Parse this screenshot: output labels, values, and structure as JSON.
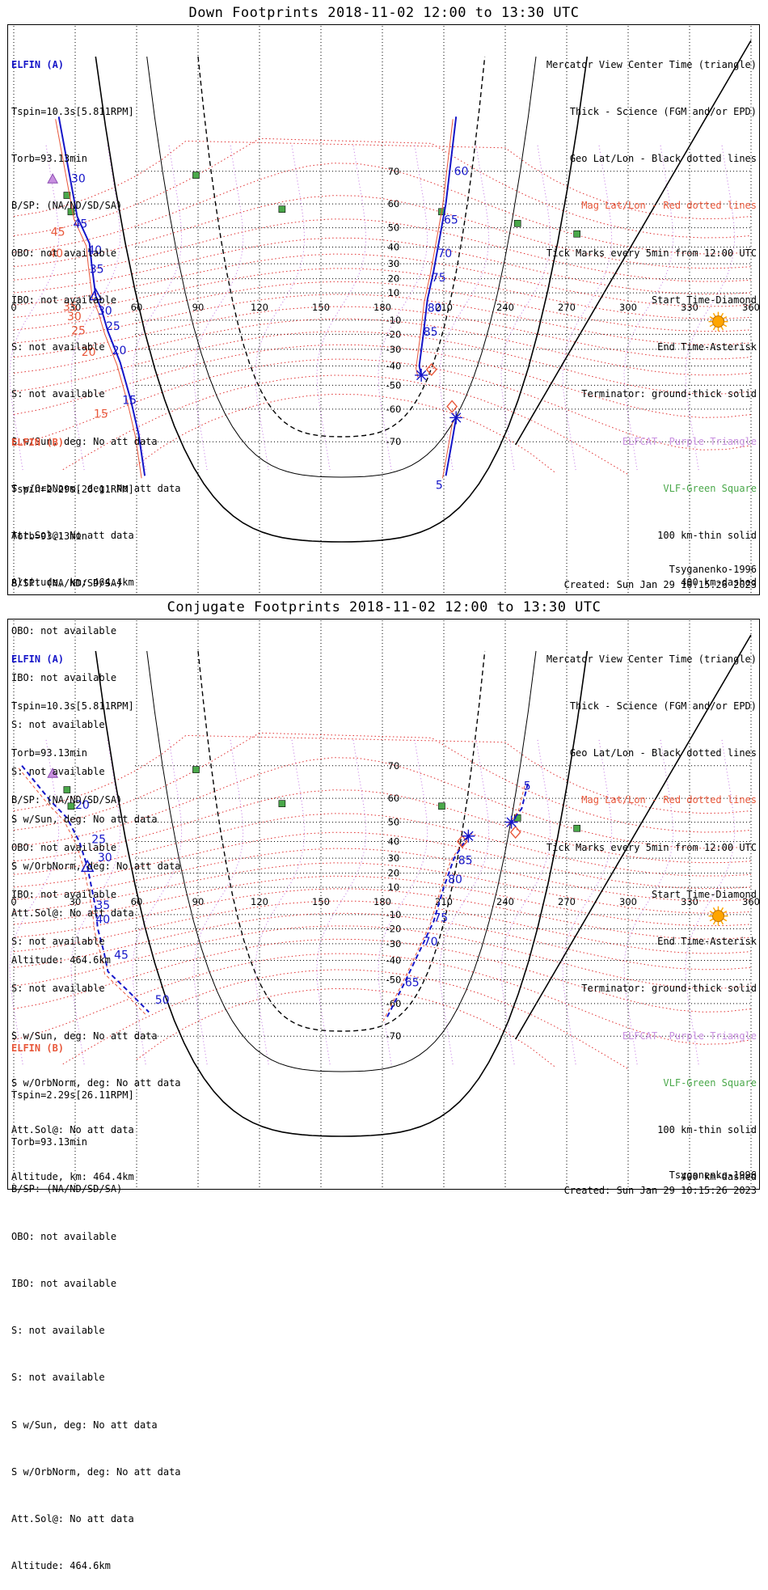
{
  "colors": {
    "elfin_a": "#1515c8",
    "elfin_b": "#e8573a",
    "geo_grid": "#000000",
    "mag_grid": "#e03030",
    "elfcat": "#c88fe0",
    "vlf": "#4aa84a",
    "sun": "#ffa500"
  },
  "panels": [
    {
      "id": "down",
      "title": "Down Footprints 2018-11-02 12:00 to 13:30 UTC",
      "left_info": {
        "sat_a": "ELFIN (A)",
        "a_lines": [
          "Tspin=10.3s[5.811RPM]",
          "Torb=93.13min",
          "B/SP: (NA/ND/SD/SA)",
          "OBO: not available",
          "IBO: not available",
          "S: not available",
          "S: not available",
          "S w/Sun, deg: No att data",
          "S w/OrbNorm, deg: No att data",
          "Att.Sol@: No att data",
          "Altitude, km: 464.4km"
        ],
        "sat_b": "ELFIN (B)",
        "b_lines": [
          "Tspin=2.29s[26.11RPM]",
          "Torb=93.13min",
          "B/SP: (NA/ND/SD/SA)",
          "OBO: not available",
          "IBO: not available",
          "S: not available",
          "S: not available",
          "S w/Sun, deg: No att data",
          "S w/OrbNorm, deg: No att data",
          "Att.Sol@: No att data",
          "Altitude: 464.6km"
        ]
      },
      "right_info": [
        "Mercator View Center Time (triangle)",
        "Thick - Science (FGM and/or EPD)",
        "Geo Lat/Lon - Black dotted lines",
        "Mag Lat/Lon - Red dotted lines",
        "Tick Marks every 5min from 12:00 UTC",
        "Start Time-Diamond",
        "End Time-Asterisk",
        "Terminator: ground-thick solid",
        "ELFCAT- Purple Triangle",
        "VLF-Green Square",
        "100 km-thin solid",
        "400 km-dashed"
      ],
      "model": "Tsyganenko-1996",
      "created": "Created: Sun Jan 29 10:15:26 2023"
    },
    {
      "id": "conjugate",
      "title": "Conjugate Footprints 2018-11-02 12:00 to 13:30 UTC",
      "left_info": {
        "sat_a": "ELFIN (A)",
        "a_lines": [
          "Tspin=10.3s[5.811RPM]",
          "Torb=93.13min",
          "B/SP: (NA/ND/SD/SA)",
          "OBO: not available",
          "IBO: not available",
          "S: not available",
          "S: not available",
          "S w/Sun, deg: No att data",
          "S w/OrbNorm, deg: No att data",
          "Att.Sol@: No att data",
          "Altitude, km: 464.4km"
        ],
        "sat_b": "ELFIN (B)",
        "b_lines": [
          "Tspin=2.29s[26.11RPM]",
          "Torb=93.13min",
          "B/SP: (NA/ND/SD/SA)",
          "OBO: not available",
          "IBO: not available",
          "S: not available",
          "S: not available",
          "S w/Sun, deg: No att data",
          "S w/OrbNorm, deg: No att data",
          "Att.Sol@: No att data",
          "Altitude: 464.6km"
        ]
      },
      "right_info": [
        "Mercator View Center Time (triangle)",
        "Thick - Science (FGM and/or EPD)",
        "Geo Lat/Lon - Black dotted lines",
        "Mag Lat/Lon - Red dotted lines",
        "Tick Marks every 5min from 12:00 UTC",
        "Start Time-Diamond",
        "End Time-Asterisk",
        "Terminator: ground-thick solid",
        "ELFCAT- Purple Triangle",
        "VLF-Green Square",
        "100 km-thin solid",
        "400 km-dashed"
      ],
      "model": "Tsyganenko-1996",
      "created": "Created: Sun Jan 29 10:15:26 2023"
    }
  ],
  "chart_data": [
    {
      "type": "scatter",
      "title": "Down Footprints 2018-11-02 12:00 to 13:30 UTC",
      "projection": "mercator",
      "xlim": [
        0,
        360
      ],
      "ylim": [
        -80,
        80
      ],
      "lon_ticks": [
        0,
        30,
        60,
        90,
        120,
        150,
        180,
        210,
        240,
        270,
        300,
        330,
        360
      ],
      "lat_ticks": [
        70,
        60,
        50,
        40,
        30,
        20,
        10,
        -10,
        -20,
        -30,
        -40,
        -50,
        -60,
        -70
      ],
      "vlf_stations": [
        [
          89,
          69
        ],
        [
          131,
          58
        ],
        [
          209,
          57
        ],
        [
          246,
          52
        ],
        [
          275,
          47
        ],
        [
          26,
          63
        ],
        [
          28,
          57
        ]
      ],
      "elfcat": [
        [
          19,
          68
        ]
      ],
      "sun": [
        344,
        -11
      ],
      "series": [
        {
          "name": "ELFIN (A)",
          "color": "#1515c8",
          "points": [
            [
              22,
              80
            ],
            [
              31,
              55
            ],
            [
              37,
              42
            ],
            [
              38,
              30
            ],
            [
              40,
              8
            ],
            [
              43,
              -3
            ],
            [
              46,
              -18
            ],
            [
              52,
              -38
            ],
            [
              57,
              -56
            ],
            [
              61,
              -68
            ],
            [
              64,
              -77
            ]
          ],
          "ticks": [
            {
              "label": "30",
              "lon": 28,
              "lat": 67
            },
            {
              "label": "45",
              "lon": 29,
              "lat": 50
            },
            {
              "label": "40",
              "lon": 36,
              "lat": 36
            },
            {
              "label": "35",
              "lon": 37,
              "lat": 24
            },
            {
              "label": "30",
              "lon": 41,
              "lat": -6
            },
            {
              "label": "25",
              "lon": 45,
              "lat": -17
            },
            {
              "label": "20",
              "lon": 48,
              "lat": -33
            },
            {
              "label": "15",
              "lon": 53,
              "lat": -58
            }
          ],
          "ticks_side_b": [
            {
              "label": "45",
              "lon": 22,
              "lat": 46
            },
            {
              "label": "40",
              "lon": 21,
              "lat": 34
            },
            {
              "label": "35",
              "lon": 28,
              "lat": -3
            },
            {
              "label": "30",
              "lon": 30,
              "lat": -10
            },
            {
              "label": "25",
              "lon": 32,
              "lat": -20
            },
            {
              "label": "20",
              "lon": 37,
              "lat": -34
            },
            {
              "label": "15",
              "lon": 43,
              "lat": -63
            }
          ]
        },
        {
          "name": "ELFIN (A) second pass",
          "color": "#1515c8",
          "points": [
            [
              216,
              80
            ],
            [
              211,
              60
            ],
            [
              208,
              45
            ],
            [
              205,
              25
            ],
            [
              202,
              5
            ],
            [
              200,
              -20
            ],
            [
              198,
              -40
            ],
            [
              199,
              -45
            ]
          ],
          "start": [
            204,
            -42
          ],
          "end": [
            199,
            -45
          ],
          "ticks": [
            {
              "label": "60",
              "lon": 215,
              "lat": 69
            },
            {
              "label": "65",
              "lon": 210,
              "lat": 52
            },
            {
              "label": "70",
              "lon": 207,
              "lat": 34
            },
            {
              "label": "75",
              "lon": 204,
              "lat": 18
            },
            {
              "label": "80",
              "lon": 202,
              "lat": -4
            },
            {
              "label": "85",
              "lon": 200,
              "lat": -21
            }
          ]
        },
        {
          "name": "ELFIN (B) second pass",
          "color": "#1515c8",
          "points": [
            [
              216,
              -63
            ],
            [
              214,
              -70
            ],
            [
              211,
              -77
            ]
          ],
          "start": [
            214,
            -59
          ],
          "end": [
            216,
            -63
          ],
          "ticks": [
            {
              "label": "5",
              "lon": 206,
              "lat": -79
            }
          ]
        }
      ]
    },
    {
      "type": "scatter",
      "title": "Conjugate Footprints 2018-11-02 12:00 to 13:30 UTC",
      "projection": "mercator",
      "xlim": [
        0,
        360
      ],
      "ylim": [
        -80,
        80
      ],
      "lon_ticks": [
        0,
        30,
        60,
        90,
        120,
        150,
        180,
        210,
        240,
        270,
        300,
        330,
        360
      ],
      "lat_ticks": [
        70,
        60,
        50,
        40,
        30,
        20,
        10,
        -10,
        -20,
        -30,
        -40,
        -50,
        -60,
        -70
      ],
      "vlf_stations": [
        [
          89,
          69
        ],
        [
          131,
          58
        ],
        [
          209,
          57
        ],
        [
          246,
          52
        ],
        [
          275,
          47
        ],
        [
          26,
          63
        ],
        [
          28,
          57
        ]
      ],
      "elfcat": [
        [
          19,
          68
        ]
      ],
      "sun": [
        344,
        -11
      ],
      "series": [
        {
          "name": "ELFIN (A)",
          "color": "#1515c8",
          "points": [
            [
              4,
              70
            ],
            [
              18,
              59
            ],
            [
              26,
              52
            ],
            [
              32,
              40
            ],
            [
              36,
              24
            ],
            [
              40,
              -5
            ],
            [
              41,
              -20
            ],
            [
              44,
              -35
            ],
            [
              46,
              -46
            ],
            [
              57,
              -56
            ],
            [
              66,
              -63
            ]
          ],
          "ticks": [
            {
              "label": "20",
              "lon": 30,
              "lat": 56
            },
            {
              "label": "25",
              "lon": 38,
              "lat": 39
            },
            {
              "label": "30",
              "lon": 41,
              "lat": 28
            },
            {
              "label": "35",
              "lon": 40,
              "lat": -6
            },
            {
              "label": "40",
              "lon": 40,
              "lat": -16
            },
            {
              "label": "45",
              "lon": 49,
              "lat": -39
            },
            {
              "label": "50",
              "lon": 69,
              "lat": -60
            }
          ]
        },
        {
          "name": "ELFIN (A) second pass",
          "color": "#1515c8",
          "points": [
            [
              222,
              43
            ],
            [
              215,
              30
            ],
            [
              210,
              10
            ],
            [
              205,
              -15
            ],
            [
              198,
              -35
            ],
            [
              190,
              -53
            ],
            [
              182,
              -65
            ]
          ],
          "start": [
            219,
            40
          ],
          "end": [
            222,
            43
          ],
          "ticks": [
            {
              "label": "85",
              "lon": 217,
              "lat": 26
            },
            {
              "label": "80",
              "lon": 212,
              "lat": 13
            },
            {
              "label": "75",
              "lon": 205,
              "lat": -15
            },
            {
              "label": "70",
              "lon": 200,
              "lat": -31
            },
            {
              "label": "65",
              "lon": 191,
              "lat": -53
            }
          ]
        },
        {
          "name": "ELFIN (B) second pass",
          "color": "#1515c8",
          "points": [
            [
              251,
              65
            ],
            [
              248,
              56
            ],
            [
              243,
              50
            ]
          ],
          "start": [
            245,
            45
          ],
          "end": [
            243,
            50
          ],
          "ticks": [
            {
              "label": "5",
              "lon": 249,
              "lat": 63
            }
          ]
        }
      ]
    }
  ]
}
